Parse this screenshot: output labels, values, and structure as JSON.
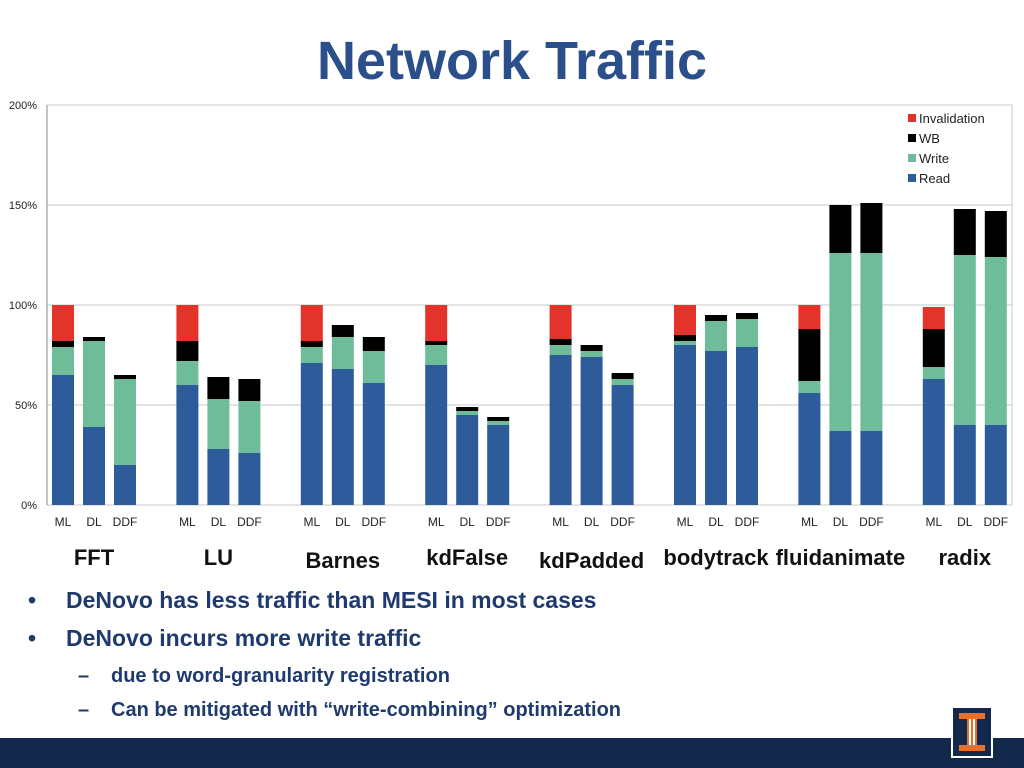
{
  "slide": {
    "title": "Network Traffic",
    "bullets": [
      {
        "text": "DeNovo has less traffic than MESI in most cases",
        "level": 1
      },
      {
        "text": "DeNovo incurs more write traffic",
        "level": 1
      },
      {
        "text": "due to word-granularity registration",
        "level": 2
      },
      {
        "text": "Can be mitigated with “write-combining” optimization",
        "level": 2
      }
    ],
    "bullet_symbol": "•",
    "dash_symbol": "–"
  },
  "chart_data": {
    "type": "bar",
    "stacked": true,
    "ylim": [
      0,
      200
    ],
    "yticks": [
      "0%",
      "50%",
      "100%",
      "150%",
      "200%"
    ],
    "yticks_values": [
      0,
      50,
      100,
      150,
      200
    ],
    "grid": true,
    "legend_position": "top-right",
    "groups": [
      "FFT",
      "LU",
      "Barnes",
      "kdFalse",
      "kdPadded",
      "bodytrack",
      "fluidanimate",
      "radix"
    ],
    "bar_labels": [
      "ML",
      "DL",
      "DDF"
    ],
    "series": [
      {
        "name": "Read",
        "color": "#2e5c9a",
        "values": [
          [
            65,
            39,
            20
          ],
          [
            60,
            28,
            26
          ],
          [
            71,
            68,
            61
          ],
          [
            70,
            45,
            40
          ],
          [
            75,
            74,
            60
          ],
          [
            80,
            77,
            79
          ],
          [
            56,
            37,
            37
          ],
          [
            63,
            40,
            40
          ]
        ]
      },
      {
        "name": "Write",
        "color": "#6fbc9a",
        "values": [
          [
            14,
            43,
            43
          ],
          [
            12,
            25,
            26
          ],
          [
            8,
            16,
            16
          ],
          [
            10,
            2,
            2
          ],
          [
            5,
            3,
            3
          ],
          [
            2,
            15,
            14
          ],
          [
            6,
            89,
            89
          ],
          [
            6,
            85,
            84
          ]
        ]
      },
      {
        "name": "WB",
        "color": "#000000",
        "values": [
          [
            3,
            2,
            2
          ],
          [
            10,
            11,
            11
          ],
          [
            3,
            6,
            7
          ],
          [
            2,
            2,
            2
          ],
          [
            3,
            3,
            3
          ],
          [
            3,
            3,
            3
          ],
          [
            26,
            24,
            25
          ],
          [
            19,
            23,
            23
          ]
        ]
      },
      {
        "name": "Invalidation",
        "color": "#e3342b",
        "values": [
          [
            18,
            0,
            0
          ],
          [
            18,
            0,
            0
          ],
          [
            18,
            0,
            0
          ],
          [
            18,
            0,
            0
          ],
          [
            17,
            0,
            0
          ],
          [
            15,
            0,
            0
          ],
          [
            12,
            0,
            0
          ],
          [
            11,
            0,
            0
          ]
        ]
      }
    ]
  }
}
